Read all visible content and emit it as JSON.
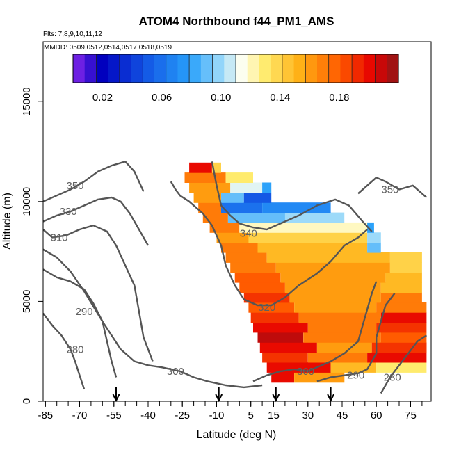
{
  "chart_data": {
    "type": "heatmap",
    "title": "ATOM4 Northbound f44_PM1_AMS",
    "subtitle_flights": "Flts: 7,8,9,10,11,12",
    "subtitle_dates": "MMDD: 0509,0512,0514,0517,0518,0519",
    "xlabel": "Latitude (deg N)",
    "ylabel": "Altitude (m)",
    "xlim": [
      -86,
      84
    ],
    "ylim": [
      0,
      18000
    ],
    "x_ticks": [
      -85,
      -70,
      -55,
      -40,
      -25,
      -10,
      5,
      15,
      30,
      45,
      60,
      75
    ],
    "x_tick_labels": [
      "-85",
      "-70",
      "-55",
      "-40",
      "-25",
      "-10",
      "5",
      "15",
      "30",
      "45",
      "60",
      "75"
    ],
    "y_ticks": [
      0,
      5000,
      10000,
      15000
    ],
    "y_tick_labels": [
      "0",
      "5000",
      "10000",
      "15000"
    ],
    "colorbar": {
      "range": [
        0.0,
        0.22
      ],
      "tick_values": [
        0.02,
        0.06,
        0.1,
        0.14,
        0.18
      ],
      "tick_labels": [
        "0.02",
        "0.06",
        "0.10",
        "0.14",
        "0.18"
      ],
      "n_colors": 28
    },
    "flight_markers_lat": [
      -54,
      -9,
      16,
      40
    ],
    "heatmap_rows": [
      {
        "alt": 1200,
        "lat_start": 14,
        "lat_end": 24,
        "value": 0.2
      },
      {
        "alt": 1200,
        "lat_start": 24,
        "lat_end": 46,
        "value": 0.16
      },
      {
        "alt": 1700,
        "lat_start": 12,
        "lat_end": 40,
        "value": 0.2
      },
      {
        "alt": 1700,
        "lat_start": 40,
        "lat_end": 60,
        "value": 0.15
      },
      {
        "alt": 1700,
        "lat_start": 60,
        "lat_end": 82,
        "value": 0.13
      },
      {
        "alt": 2200,
        "lat_start": 10,
        "lat_end": 30,
        "value": 0.19
      },
      {
        "alt": 2200,
        "lat_start": 30,
        "lat_end": 56,
        "value": 0.17
      },
      {
        "alt": 2200,
        "lat_start": 56,
        "lat_end": 82,
        "value": 0.2
      },
      {
        "alt": 2700,
        "lat_start": 9,
        "lat_end": 34,
        "value": 0.2
      },
      {
        "alt": 2700,
        "lat_start": 34,
        "lat_end": 58,
        "value": 0.16
      },
      {
        "alt": 2700,
        "lat_start": 58,
        "lat_end": 82,
        "value": 0.19
      },
      {
        "alt": 3200,
        "lat_start": 8,
        "lat_end": 28,
        "value": 0.21
      },
      {
        "alt": 3200,
        "lat_start": 28,
        "lat_end": 62,
        "value": 0.17
      },
      {
        "alt": 3200,
        "lat_start": 62,
        "lat_end": 82,
        "value": 0.18
      },
      {
        "alt": 3700,
        "lat_start": 6,
        "lat_end": 30,
        "value": 0.2
      },
      {
        "alt": 3700,
        "lat_start": 30,
        "lat_end": 60,
        "value": 0.17
      },
      {
        "alt": 3700,
        "lat_start": 60,
        "lat_end": 82,
        "value": 0.19
      },
      {
        "alt": 4200,
        "lat_start": 5,
        "lat_end": 26,
        "value": 0.19
      },
      {
        "alt": 4200,
        "lat_start": 26,
        "lat_end": 62,
        "value": 0.17
      },
      {
        "alt": 4200,
        "lat_start": 62,
        "lat_end": 82,
        "value": 0.2
      },
      {
        "alt": 4700,
        "lat_start": 4,
        "lat_end": 24,
        "value": 0.18
      },
      {
        "alt": 4700,
        "lat_start": 24,
        "lat_end": 60,
        "value": 0.16
      },
      {
        "alt": 4700,
        "lat_start": 60,
        "lat_end": 82,
        "value": 0.17
      },
      {
        "alt": 5200,
        "lat_start": 2,
        "lat_end": 22,
        "value": 0.19
      },
      {
        "alt": 5200,
        "lat_start": 22,
        "lat_end": 62,
        "value": 0.16
      },
      {
        "alt": 5200,
        "lat_start": 62,
        "lat_end": 80,
        "value": 0.17
      },
      {
        "alt": 5700,
        "lat_start": 0,
        "lat_end": 20,
        "value": 0.18
      },
      {
        "alt": 5700,
        "lat_start": 20,
        "lat_end": 62,
        "value": 0.16
      },
      {
        "alt": 5700,
        "lat_start": 62,
        "lat_end": 80,
        "value": 0.15
      },
      {
        "alt": 6200,
        "lat_start": -2,
        "lat_end": 18,
        "value": 0.18
      },
      {
        "alt": 6200,
        "lat_start": 18,
        "lat_end": 64,
        "value": 0.16
      },
      {
        "alt": 6200,
        "lat_start": 64,
        "lat_end": 80,
        "value": 0.15
      },
      {
        "alt": 6700,
        "lat_start": -4,
        "lat_end": 16,
        "value": 0.17
      },
      {
        "alt": 6700,
        "lat_start": 16,
        "lat_end": 66,
        "value": 0.16
      },
      {
        "alt": 6700,
        "lat_start": 66,
        "lat_end": 80,
        "value": 0.14
      },
      {
        "alt": 7200,
        "lat_start": -6,
        "lat_end": 12,
        "value": 0.17
      },
      {
        "alt": 7200,
        "lat_start": 12,
        "lat_end": 66,
        "value": 0.15
      },
      {
        "alt": 7200,
        "lat_start": 66,
        "lat_end": 80,
        "value": 0.14
      },
      {
        "alt": 7700,
        "lat_start": -8,
        "lat_end": 8,
        "value": 0.17
      },
      {
        "alt": 7700,
        "lat_start": 8,
        "lat_end": 56,
        "value": 0.15
      },
      {
        "alt": 7700,
        "lat_start": 56,
        "lat_end": 62,
        "value": 0.09
      },
      {
        "alt": 8200,
        "lat_start": -10,
        "lat_end": 4,
        "value": 0.16
      },
      {
        "alt": 8200,
        "lat_start": 4,
        "lat_end": 56,
        "value": 0.14
      },
      {
        "alt": 8200,
        "lat_start": 56,
        "lat_end": 62,
        "value": 0.1
      },
      {
        "alt": 8700,
        "lat_start": -13,
        "lat_end": 0,
        "value": 0.17
      },
      {
        "alt": 8700,
        "lat_start": 0,
        "lat_end": 56,
        "value": 0.12
      },
      {
        "alt": 8700,
        "lat_start": 56,
        "lat_end": 59,
        "value": 0.08
      },
      {
        "alt": 9200,
        "lat_start": -16,
        "lat_end": -5,
        "value": 0.17
      },
      {
        "alt": 9200,
        "lat_start": -5,
        "lat_end": 20,
        "value": 0.09
      },
      {
        "alt": 9200,
        "lat_start": 20,
        "lat_end": 46,
        "value": 0.1
      },
      {
        "alt": 9700,
        "lat_start": -18,
        "lat_end": -8,
        "value": 0.17
      },
      {
        "alt": 9700,
        "lat_start": -8,
        "lat_end": 10,
        "value": 0.06
      },
      {
        "alt": 9700,
        "lat_start": 10,
        "lat_end": 40,
        "value": 0.07
      },
      {
        "alt": 10200,
        "lat_start": -20,
        "lat_end": -8,
        "value": 0.16
      },
      {
        "alt": 10200,
        "lat_start": -8,
        "lat_end": 2,
        "value": 0.09
      },
      {
        "alt": 10200,
        "lat_start": 2,
        "lat_end": 14,
        "value": 0.05
      },
      {
        "alt": 10700,
        "lat_start": -22,
        "lat_end": -4,
        "value": 0.16
      },
      {
        "alt": 10700,
        "lat_start": -4,
        "lat_end": 10,
        "value": 0.11
      },
      {
        "alt": 10700,
        "lat_start": 10,
        "lat_end": 14,
        "value": 0.08
      },
      {
        "alt": 11200,
        "lat_start": -24,
        "lat_end": -6,
        "value": 0.17
      },
      {
        "alt": 11200,
        "lat_start": -6,
        "lat_end": 6,
        "value": 0.13
      },
      {
        "alt": 11700,
        "lat_start": -22,
        "lat_end": -12,
        "value": 0.2
      },
      {
        "alt": 11700,
        "lat_start": -12,
        "lat_end": -8,
        "value": 0.14
      }
    ],
    "contours": [
      {
        "label": "350",
        "label_lat": -72,
        "label_alt": 10800,
        "points": [
          [
            -86,
            10000
          ],
          [
            -80,
            10300
          ],
          [
            -74,
            10600
          ],
          [
            -68,
            11000
          ],
          [
            -62,
            11500
          ],
          [
            -56,
            11800
          ],
          [
            -50,
            12000
          ],
          [
            -46,
            11500
          ],
          [
            -42,
            10500
          ]
        ]
      },
      {
        "label": "350",
        "label_lat": 66,
        "label_alt": 10600,
        "points": [
          [
            52,
            10400
          ],
          [
            56,
            10800
          ],
          [
            60,
            11200
          ],
          [
            64,
            11000
          ],
          [
            70,
            10600
          ],
          [
            76,
            10800
          ],
          [
            82,
            10200
          ]
        ]
      },
      {
        "label": "330",
        "label_lat": -75,
        "label_alt": 9500,
        "points": [
          [
            -86,
            9000
          ],
          [
            -80,
            9300
          ],
          [
            -74,
            9500
          ],
          [
            -68,
            9800
          ],
          [
            -62,
            10100
          ],
          [
            -56,
            10200
          ],
          [
            -52,
            10000
          ],
          [
            -48,
            9400
          ],
          [
            -44,
            8600
          ],
          [
            -40,
            7800
          ]
        ]
      },
      {
        "label": "310",
        "label_lat": -79,
        "label_alt": 8200,
        "points": [
          [
            -86,
            8600
          ],
          [
            -82,
            8200
          ],
          [
            -76,
            8300
          ],
          [
            -70,
            8600
          ],
          [
            -64,
            8800
          ],
          [
            -58,
            8500
          ],
          [
            -54,
            7800
          ],
          [
            -50,
            6800
          ],
          [
            -46,
            5800
          ],
          [
            -44,
            4500
          ],
          [
            -42,
            3200
          ],
          [
            -38,
            2000
          ]
        ]
      },
      {
        "label": "340",
        "label_lat": 4,
        "label_alt": 8400,
        "points": [
          [
            -12,
            12000
          ],
          [
            -10,
            10800
          ],
          [
            -8,
            9800
          ],
          [
            -4,
            9300
          ],
          [
            0,
            8900
          ],
          [
            6,
            8700
          ],
          [
            12,
            8600
          ],
          [
            18,
            8900
          ],
          [
            26,
            9300
          ],
          [
            34,
            9800
          ],
          [
            42,
            10100
          ],
          [
            48,
            9800
          ],
          [
            54,
            9000
          ],
          [
            58,
            8500
          ]
        ]
      },
      {
        "label": "290",
        "label_lat": -68,
        "label_alt": 4500,
        "points": [
          [
            -86,
            6600
          ],
          [
            -80,
            6200
          ],
          [
            -74,
            6000
          ],
          [
            -68,
            5600
          ],
          [
            -64,
            4900
          ],
          [
            -60,
            4000
          ],
          [
            -58,
            3000
          ],
          [
            -56,
            2000
          ],
          [
            -54,
            1200
          ]
        ]
      },
      {
        "label": "280",
        "label_lat": -72,
        "label_alt": 2600,
        "points": [
          [
            -86,
            4400
          ],
          [
            -82,
            3800
          ],
          [
            -78,
            3300
          ],
          [
            -74,
            2600
          ],
          [
            -72,
            2000
          ],
          [
            -70,
            1300
          ],
          [
            -68,
            600
          ]
        ]
      },
      {
        "label": "300",
        "label_lat": -28,
        "label_alt": 1500,
        "points": [
          [
            -86,
            7600
          ],
          [
            -80,
            7200
          ],
          [
            -74,
            6500
          ],
          [
            -68,
            5500
          ],
          [
            -60,
            4000
          ],
          [
            -52,
            2600
          ],
          [
            -46,
            2000
          ],
          [
            -40,
            1800
          ],
          [
            -34,
            1700
          ],
          [
            -26,
            1500
          ],
          [
            -20,
            1200
          ],
          [
            -14,
            1000
          ],
          [
            -6,
            800
          ],
          [
            2,
            700
          ],
          [
            10,
            800
          ]
        ]
      },
      {
        "label": "320",
        "label_lat": 12,
        "label_alt": 4700,
        "points": [
          [
            -30,
            11000
          ],
          [
            -28,
            10600
          ],
          [
            -26,
            10300
          ],
          [
            -22,
            10000
          ],
          [
            -16,
            9400
          ],
          [
            -12,
            8800
          ],
          [
            -8,
            7800
          ],
          [
            -6,
            6800
          ],
          [
            -2,
            5800
          ],
          [
            2,
            5100
          ],
          [
            8,
            4800
          ],
          [
            14,
            4800
          ],
          [
            20,
            5200
          ],
          [
            26,
            5800
          ],
          [
            34,
            6400
          ],
          [
            40,
            7000
          ],
          [
            46,
            7800
          ],
          [
            52,
            8200
          ],
          [
            56,
            8600
          ]
        ]
      },
      {
        "label": "300",
        "label_lat": 29,
        "label_alt": 1500,
        "points": [
          [
            6,
            1000
          ],
          [
            12,
            1300
          ],
          [
            18,
            1500
          ],
          [
            24,
            1600
          ],
          [
            30,
            1500
          ],
          [
            36,
            1800
          ],
          [
            40,
            2000
          ],
          [
            46,
            2400
          ],
          [
            52,
            3000
          ],
          [
            54,
            3800
          ],
          [
            56,
            4600
          ],
          [
            58,
            5400
          ],
          [
            60,
            6000
          ]
        ]
      },
      {
        "label": "290",
        "label_lat": 51,
        "label_alt": 1300,
        "points": [
          [
            34,
            1000
          ],
          [
            40,
            1200
          ],
          [
            46,
            1300
          ],
          [
            52,
            1400
          ],
          [
            56,
            1600
          ],
          [
            58,
            2000
          ],
          [
            60,
            2400
          ],
          [
            60,
            3200
          ],
          [
            62,
            4000
          ],
          [
            64,
            4800
          ],
          [
            68,
            5400
          ]
        ]
      },
      {
        "label": "280",
        "label_lat": 67,
        "label_alt": 1200,
        "points": [
          [
            62,
            400
          ],
          [
            64,
            800
          ],
          [
            66,
            1200
          ],
          [
            70,
            1800
          ],
          [
            74,
            2400
          ],
          [
            78,
            3000
          ],
          [
            82,
            3300
          ]
        ]
      }
    ]
  }
}
